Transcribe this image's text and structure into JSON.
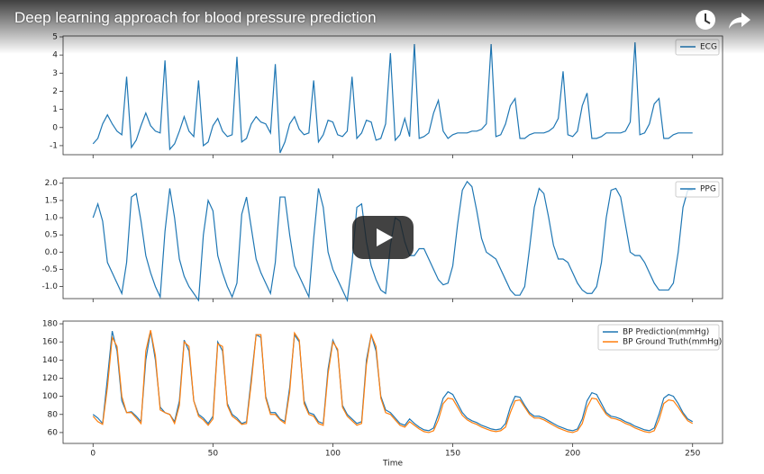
{
  "video_title": "Deep learning approach for blood pressure prediction",
  "chart_data": [
    {
      "type": "line",
      "x": [
        0,
        2,
        4,
        6,
        8,
        10,
        12,
        14,
        16,
        18,
        20,
        22,
        24,
        26,
        28,
        30,
        32,
        34,
        36,
        38,
        40,
        42,
        44,
        46,
        48,
        50,
        52,
        54,
        56,
        58,
        60,
        62,
        64,
        66,
        68,
        70,
        72,
        74,
        76,
        78,
        80,
        82,
        84,
        86,
        88,
        90,
        92,
        94,
        96,
        98,
        100,
        102,
        104,
        106,
        108,
        110,
        112,
        114,
        116,
        118,
        120,
        122,
        124,
        126,
        128,
        130,
        132,
        134,
        136,
        138,
        140,
        142,
        144,
        146,
        148,
        150,
        152,
        154,
        156,
        158,
        160,
        162,
        164,
        166,
        168,
        170,
        172,
        174,
        176,
        178,
        180,
        182,
        184,
        186,
        188,
        190,
        192,
        194,
        196,
        198,
        200,
        202,
        204,
        206,
        208,
        210,
        212,
        214,
        216,
        218,
        220,
        222,
        224,
        226,
        228,
        230,
        232,
        234,
        236,
        238,
        240,
        242,
        244,
        246,
        248,
        250
      ],
      "series": [
        {
          "name": "ECG",
          "color": "#1f77b4",
          "values": [
            -0.9,
            -0.6,
            0.2,
            0.7,
            0.2,
            -0.2,
            -0.4,
            2.8,
            -1.1,
            -0.7,
            0.1,
            0.8,
            0.1,
            -0.2,
            -0.3,
            3.7,
            -1.2,
            -0.9,
            -0.2,
            0.6,
            -0.2,
            -0.5,
            2.6,
            -1.0,
            -0.8,
            0.1,
            0.5,
            -0.2,
            -0.5,
            -0.4,
            3.9,
            -0.8,
            -0.6,
            0.2,
            0.6,
            0.3,
            0.2,
            -0.3,
            3.5,
            -1.4,
            -0.8,
            0.2,
            0.6,
            -0.1,
            -0.4,
            -0.3,
            2.6,
            -0.8,
            -0.4,
            0.4,
            0.3,
            -0.4,
            -0.5,
            -0.2,
            2.8,
            -0.6,
            -0.3,
            0.4,
            0.3,
            -0.7,
            -0.6,
            0.2,
            4.1,
            -0.7,
            -0.4,
            0.5,
            -0.5,
            4.6,
            -0.6,
            -0.5,
            -0.3,
            0.8,
            1.5,
            -0.2,
            -0.6,
            -0.4,
            -0.3,
            -0.3,
            -0.3,
            -0.2,
            -0.2,
            -0.1,
            0.2,
            4.6,
            -0.5,
            -0.4,
            0.2,
            1.2,
            1.6,
            -0.6,
            -0.6,
            -0.4,
            -0.3,
            -0.3,
            -0.3,
            -0.2,
            0.0,
            0.5,
            3.1,
            -0.4,
            -0.5,
            -0.2,
            1.2,
            1.9,
            -0.6,
            -0.6,
            -0.5,
            -0.3,
            -0.3,
            -0.3,
            -0.3,
            -0.2,
            0.3,
            4.7,
            -0.4,
            -0.3,
            0.2,
            1.3,
            1.6,
            -0.6,
            -0.6,
            -0.4,
            -0.3,
            -0.3,
            -0.3,
            -0.3
          ]
        }
      ],
      "xlim": [
        -12.5,
        262.5
      ],
      "xticks": [
        0,
        50,
        100,
        150,
        200,
        250
      ],
      "ylim": [
        -1.5,
        5.05
      ],
      "yticks": [
        -1,
        0,
        1,
        2,
        3,
        4,
        5
      ],
      "legend": "upper right"
    },
    {
      "type": "line",
      "x": [
        0,
        2,
        4,
        6,
        8,
        10,
        12,
        14,
        16,
        18,
        20,
        22,
        24,
        26,
        28,
        30,
        32,
        34,
        36,
        38,
        40,
        42,
        44,
        46,
        48,
        50,
        52,
        54,
        56,
        58,
        60,
        62,
        64,
        66,
        68,
        70,
        72,
        74,
        76,
        78,
        80,
        82,
        84,
        86,
        88,
        90,
        92,
        94,
        96,
        98,
        100,
        102,
        104,
        106,
        108,
        110,
        112,
        114,
        116,
        118,
        120,
        122,
        124,
        126,
        128,
        130,
        132,
        134,
        136,
        138,
        140,
        142,
        144,
        146,
        148,
        150,
        152,
        154,
        156,
        158,
        160,
        162,
        164,
        166,
        168,
        170,
        172,
        174,
        176,
        178,
        180,
        182,
        184,
        186,
        188,
        190,
        192,
        194,
        196,
        198,
        200,
        202,
        204,
        206,
        208,
        210,
        212,
        214,
        216,
        218,
        220,
        222,
        224,
        226,
        228,
        230,
        232,
        234,
        236,
        238,
        240,
        242,
        244,
        246,
        248,
        250
      ],
      "series": [
        {
          "name": "PPG",
          "color": "#1f77b4",
          "values": [
            1.0,
            1.4,
            0.9,
            -0.3,
            -0.6,
            -0.9,
            -1.2,
            -0.3,
            1.6,
            1.7,
            0.9,
            -0.1,
            -0.6,
            -1.0,
            -1.3,
            0.6,
            1.85,
            1.0,
            -0.2,
            -0.7,
            -1.0,
            -1.2,
            -1.4,
            0.5,
            1.5,
            1.2,
            -0.1,
            -0.6,
            -1.0,
            -1.3,
            -0.9,
            1.1,
            1.6,
            0.7,
            -0.2,
            -0.6,
            -0.9,
            -1.2,
            -0.3,
            1.6,
            1.6,
            0.5,
            -0.4,
            -0.7,
            -1.0,
            -1.3,
            0.4,
            1.85,
            1.3,
            0.0,
            -0.5,
            -0.8,
            -1.1,
            -1.4,
            -0.3,
            1.3,
            1.4,
            0.3,
            -0.4,
            -0.8,
            -1.1,
            -1.2,
            0.2,
            1.0,
            0.9,
            0.3,
            -0.1,
            -0.1,
            0.1,
            0.1,
            -0.2,
            -0.5,
            -0.8,
            -0.95,
            -0.9,
            -0.4,
            0.8,
            1.8,
            2.05,
            1.9,
            1.2,
            0.4,
            0.0,
            -0.1,
            -0.2,
            -0.5,
            -0.8,
            -1.1,
            -1.25,
            -1.25,
            -1.0,
            0.1,
            1.3,
            1.85,
            1.7,
            1.0,
            0.2,
            -0.2,
            -0.2,
            -0.3,
            -0.6,
            -0.9,
            -1.1,
            -1.2,
            -1.2,
            -1.0,
            -0.3,
            1.0,
            1.8,
            1.85,
            1.6,
            0.8,
            0.0,
            -0.1,
            -0.1,
            -0.3,
            -0.6,
            -0.9,
            -1.1,
            -1.1,
            -1.1,
            -0.9,
            0.0,
            1.3,
            1.8,
            1.8
          ]
        }
      ],
      "xlim": [
        -12.5,
        262.5
      ],
      "xticks": [
        0,
        50,
        100,
        150,
        200,
        250
      ],
      "ylim": [
        -1.35,
        2.15
      ],
      "yticks": [
        {
          "value": -1,
          "label": "-1.0"
        },
        -0.5,
        {
          "value": 0,
          "label": "0.0"
        },
        0.5,
        {
          "value": 1,
          "label": "1.0"
        },
        1.5,
        {
          "value": 2,
          "label": "2.0"
        }
      ],
      "legend": "upper right"
    },
    {
      "type": "line",
      "x": [
        0,
        2,
        4,
        6,
        8,
        10,
        12,
        14,
        16,
        18,
        20,
        22,
        24,
        26,
        28,
        30,
        32,
        34,
        36,
        38,
        40,
        42,
        44,
        46,
        48,
        50,
        52,
        54,
        56,
        58,
        60,
        62,
        64,
        66,
        68,
        70,
        72,
        74,
        76,
        78,
        80,
        82,
        84,
        86,
        88,
        90,
        92,
        94,
        96,
        98,
        100,
        102,
        104,
        106,
        108,
        110,
        112,
        114,
        116,
        118,
        120,
        122,
        124,
        126,
        128,
        130,
        132,
        134,
        136,
        138,
        140,
        142,
        144,
        146,
        148,
        150,
        152,
        154,
        156,
        158,
        160,
        162,
        164,
        166,
        168,
        170,
        172,
        174,
        176,
        178,
        180,
        182,
        184,
        186,
        188,
        190,
        192,
        194,
        196,
        198,
        200,
        202,
        204,
        206,
        208,
        210,
        212,
        214,
        216,
        218,
        220,
        222,
        224,
        226,
        228,
        230,
        232,
        234,
        236,
        238,
        240,
        242,
        244,
        246,
        248,
        250
      ],
      "series": [
        {
          "name": "BP Prediction(mmHg)",
          "color": "#1f77b4",
          "values": [
            80,
            76,
            70,
            120,
            172,
            150,
            95,
            82,
            83,
            78,
            72,
            140,
            172,
            140,
            88,
            82,
            80,
            72,
            95,
            162,
            150,
            95,
            80,
            76,
            70,
            78,
            160,
            150,
            92,
            80,
            76,
            70,
            72,
            120,
            168,
            165,
            100,
            82,
            82,
            75,
            72,
            110,
            168,
            160,
            95,
            82,
            80,
            72,
            70,
            130,
            162,
            150,
            90,
            80,
            75,
            70,
            72,
            140,
            168,
            150,
            100,
            85,
            82,
            76,
            70,
            68,
            75,
            70,
            66,
            63,
            62,
            65,
            80,
            98,
            105,
            102,
            92,
            82,
            76,
            73,
            71,
            68,
            66,
            64,
            63,
            64,
            70,
            88,
            100,
            99,
            90,
            82,
            78,
            78,
            76,
            73,
            70,
            67,
            65,
            63,
            62,
            64,
            75,
            95,
            104,
            102,
            92,
            82,
            78,
            77,
            75,
            72,
            70,
            67,
            65,
            63,
            62,
            65,
            80,
            98,
            102,
            100,
            92,
            82,
            75,
            72
          ]
        },
        {
          "name": "BP Ground Truth(mmHg)",
          "color": "#ff7f0e",
          "values": [
            78,
            72,
            69,
            110,
            165,
            155,
            100,
            82,
            82,
            76,
            70,
            150,
            173,
            145,
            85,
            82,
            80,
            70,
            90,
            160,
            155,
            95,
            78,
            74,
            68,
            75,
            158,
            155,
            90,
            78,
            74,
            69,
            70,
            115,
            168,
            168,
            98,
            80,
            80,
            74,
            70,
            105,
            170,
            162,
            92,
            80,
            78,
            70,
            68,
            125,
            160,
            152,
            88,
            78,
            73,
            68,
            70,
            135,
            168,
            155,
            98,
            82,
            80,
            74,
            68,
            66,
            72,
            68,
            64,
            61,
            60,
            62,
            74,
            92,
            98,
            97,
            88,
            79,
            74,
            71,
            69,
            66,
            64,
            62,
            61,
            62,
            66,
            82,
            95,
            96,
            88,
            80,
            76,
            76,
            74,
            71,
            68,
            65,
            63,
            61,
            60,
            62,
            70,
            88,
            98,
            97,
            88,
            80,
            76,
            75,
            73,
            70,
            68,
            65,
            63,
            61,
            60,
            62,
            74,
            92,
            96,
            95,
            88,
            80,
            73,
            70
          ]
        }
      ],
      "xlim": [
        -12.5,
        262.5
      ],
      "xticks": [
        0,
        50,
        100,
        150,
        200,
        250
      ],
      "xlabel": "Time",
      "ylim": [
        48,
        183
      ],
      "yticks": [
        60,
        80,
        100,
        120,
        140,
        160,
        180
      ],
      "legend": "upper right"
    }
  ]
}
